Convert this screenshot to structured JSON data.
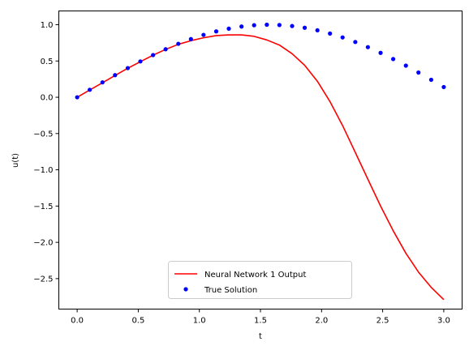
{
  "chart_data": {
    "type": "line",
    "xlabel": "t",
    "ylabel": "u(t)",
    "xlim": [
      -0.15,
      3.15
    ],
    "ylim": [
      -2.92,
      1.19
    ],
    "xticks": [
      0.0,
      0.5,
      1.0,
      1.5,
      2.0,
      2.5,
      3.0
    ],
    "xtick_labels": [
      "0.0",
      "0.5",
      "1.0",
      "1.5",
      "2.0",
      "2.5",
      "3.0"
    ],
    "yticks": [
      -2.5,
      -2.0,
      -1.5,
      -1.0,
      -0.5,
      0.0,
      0.5,
      1.0
    ],
    "ytick_labels": [
      "−2.5",
      "−2.0",
      "−1.5",
      "−1.0",
      "−0.5",
      "0.0",
      "0.5",
      "1.0"
    ],
    "grid": false,
    "legend_position": "bottom-center",
    "series": [
      {
        "name": "Neural Network 1 Output",
        "style": "line",
        "color": "#ff0000",
        "x": [
          0.0,
          0.103,
          0.207,
          0.31,
          0.414,
          0.517,
          0.621,
          0.724,
          0.828,
          0.931,
          1.034,
          1.138,
          1.241,
          1.345,
          1.448,
          1.552,
          1.655,
          1.759,
          1.862,
          1.966,
          2.069,
          2.172,
          2.276,
          2.379,
          2.483,
          2.586,
          2.69,
          2.793,
          2.897,
          3.0
        ],
        "y": [
          0.0,
          0.1,
          0.2,
          0.3,
          0.4,
          0.49,
          0.58,
          0.66,
          0.73,
          0.78,
          0.82,
          0.85,
          0.86,
          0.86,
          0.84,
          0.79,
          0.72,
          0.6,
          0.44,
          0.22,
          -0.06,
          -0.39,
          -0.76,
          -1.13,
          -1.5,
          -1.84,
          -2.15,
          -2.41,
          -2.62,
          -2.79
        ]
      },
      {
        "name": "True Solution",
        "style": "points",
        "color": "#0000ff",
        "x": [
          0.0,
          0.103,
          0.207,
          0.31,
          0.414,
          0.517,
          0.621,
          0.724,
          0.828,
          0.931,
          1.034,
          1.138,
          1.241,
          1.345,
          1.448,
          1.552,
          1.655,
          1.759,
          1.862,
          1.966,
          2.069,
          2.172,
          2.276,
          2.379,
          2.483,
          2.586,
          2.69,
          2.793,
          2.897,
          3.0
        ],
        "y": [
          0.0,
          0.103,
          0.205,
          0.305,
          0.402,
          0.494,
          0.581,
          0.662,
          0.737,
          0.802,
          0.86,
          0.908,
          0.946,
          0.975,
          0.993,
          1.0,
          0.996,
          0.982,
          0.958,
          0.923,
          0.879,
          0.825,
          0.762,
          0.691,
          0.612,
          0.527,
          0.436,
          0.341,
          0.241,
          0.141
        ]
      }
    ]
  }
}
